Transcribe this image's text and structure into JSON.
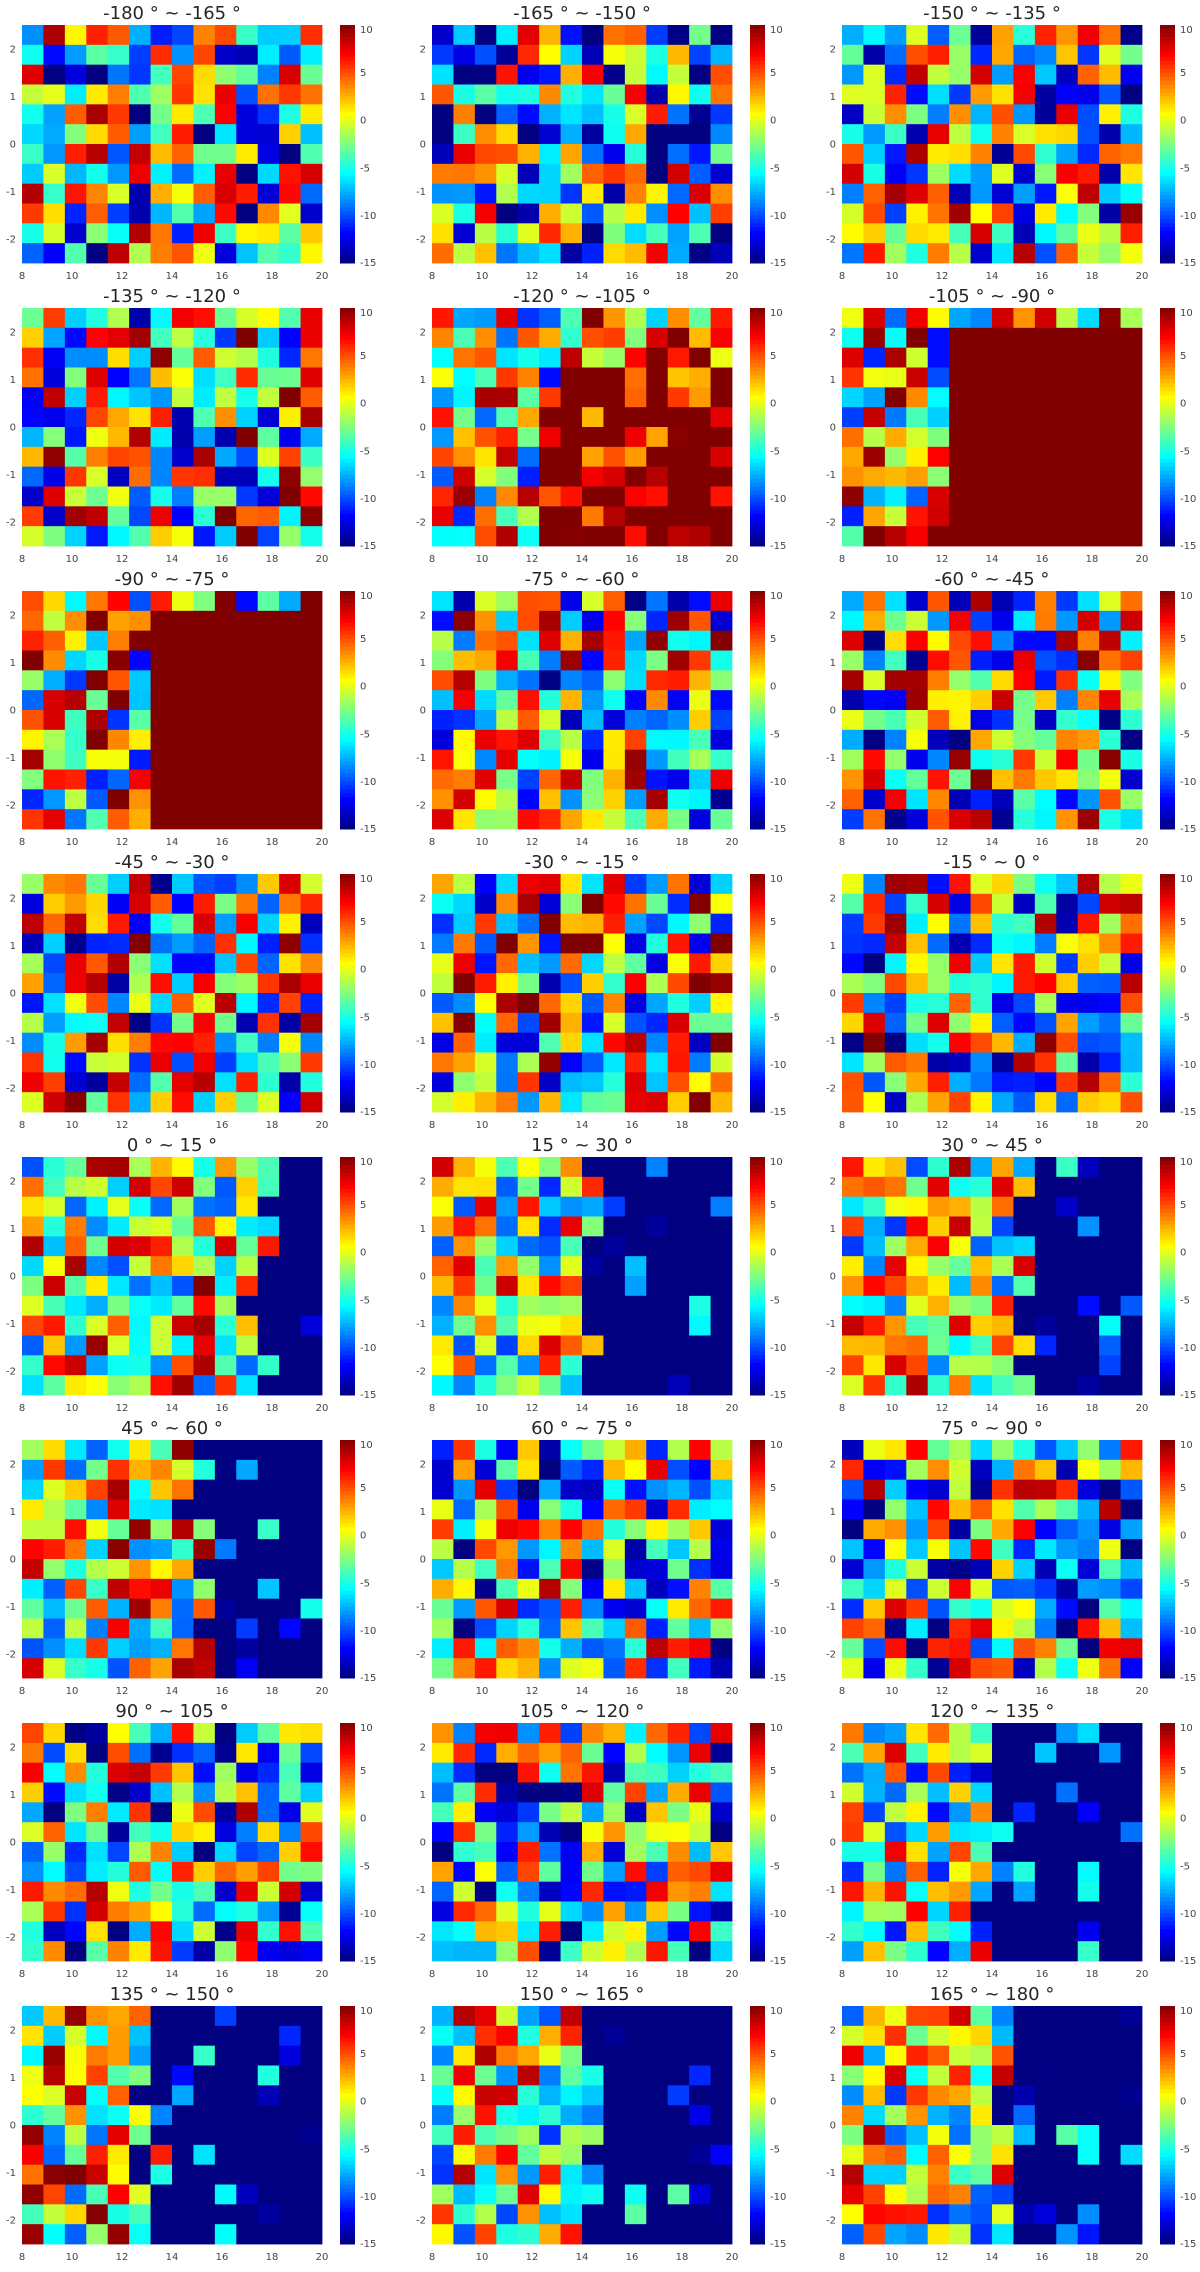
{
  "chart_data": {
    "type": "heatmap",
    "layout": {
      "rows": 8,
      "cols": 3
    },
    "x": {
      "range": [
        8,
        20
      ],
      "ticks": [
        8,
        10,
        12,
        14,
        16,
        18,
        20
      ],
      "bins": 14
    },
    "y": {
      "range": [
        -2.5,
        2.5
      ],
      "ticks": [
        2,
        1,
        0,
        -1,
        -2
      ],
      "bins": 12
    },
    "colorbar": {
      "range": [
        -15,
        10
      ],
      "ticks": [
        10,
        5,
        0,
        -5,
        -10,
        -15
      ],
      "colormap": "jet"
    },
    "panels": [
      {
        "title": "-180 ° ~ -165 °",
        "pattern": "random",
        "level": -1
      },
      {
        "title": "-165 ° ~ -150 °",
        "pattern": "random",
        "level": -2
      },
      {
        "title": "-150 ° ~ -135 °",
        "pattern": "random",
        "level": 0
      },
      {
        "title": "-135 ° ~ -120 °",
        "pattern": "random",
        "level": 1
      },
      {
        "title": "-120 ° ~ -105 °",
        "pattern": "rightHigh",
        "boundary": 12.5,
        "level": 2
      },
      {
        "title": "-105 ° ~ -90 °",
        "pattern": "rightSaturated",
        "boundary": 12,
        "topFrom": 0.9
      },
      {
        "title": "-90 ° ~ -75 °",
        "pattern": "rightSaturated",
        "boundary": 13,
        "topFrom": 1.3
      },
      {
        "title": "-75 ° ~ -60 °",
        "pattern": "random",
        "level": 0
      },
      {
        "title": "-60 ° ~ -45 °",
        "pattern": "random",
        "level": 0
      },
      {
        "title": "-45 ° ~ -30 °",
        "pattern": "random",
        "level": 0
      },
      {
        "title": "-30 ° ~ -15 °",
        "pattern": "random",
        "level": 1
      },
      {
        "title": "-15 ° ~ 0 °",
        "pattern": "random",
        "level": 0
      },
      {
        "title": "0 ° ~ 15 °",
        "pattern": "rightLow",
        "boundary": 17.5,
        "level": 0
      },
      {
        "title": "15 ° ~ 30 °",
        "pattern": "rightLow",
        "boundary": 14.5,
        "level": -1
      },
      {
        "title": "30 ° ~ 45 °",
        "pattern": "rightLow",
        "boundary": 15.5,
        "level": -1
      },
      {
        "title": "45 ° ~ 60 °",
        "pattern": "rightLow",
        "boundary": 15,
        "level": 0
      },
      {
        "title": "60 ° ~ 75 °",
        "pattern": "random",
        "level": -1
      },
      {
        "title": "75 ° ~ 90 °",
        "pattern": "random",
        "level": -1
      },
      {
        "title": "90 ° ~ 105 °",
        "pattern": "random",
        "level": -1
      },
      {
        "title": "105 ° ~ 120 °",
        "pattern": "random",
        "level": -2
      },
      {
        "title": "120 ° ~ 135 °",
        "pattern": "rightLow",
        "boundary": 14,
        "level": -2
      },
      {
        "title": "135 ° ~ 150 °",
        "pattern": "rightLow",
        "boundary": 13,
        "level": 0
      },
      {
        "title": "150 ° ~ 165 °",
        "pattern": "rightLow",
        "boundary": 14.5,
        "level": -1
      },
      {
        "title": "165 ° ~ 180 °",
        "pattern": "rightLow",
        "boundary": 14.5,
        "level": -1
      }
    ]
  }
}
